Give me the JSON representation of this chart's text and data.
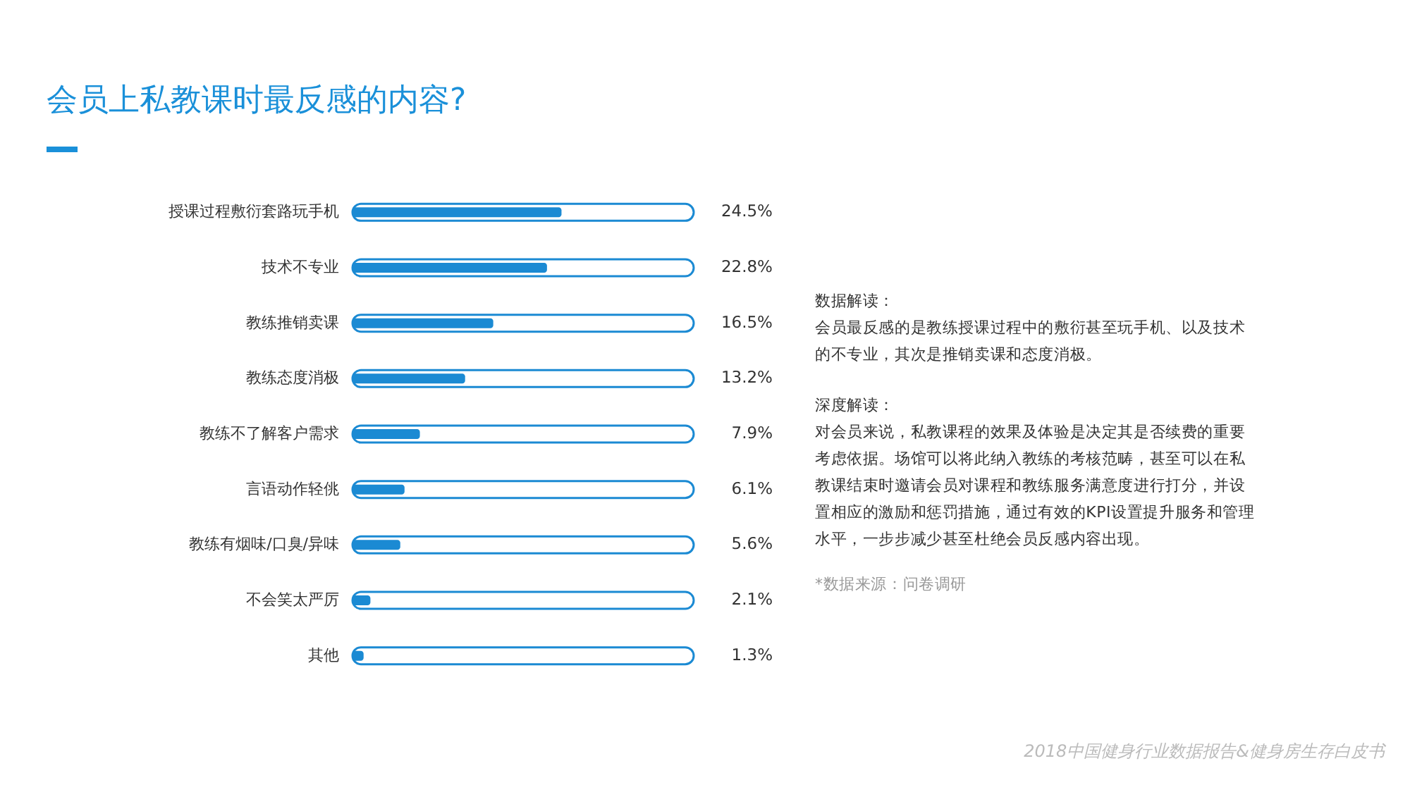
{
  "chart_data": {
    "type": "bar",
    "orientation": "horizontal",
    "title": "会员上私教课时最反感的内容?",
    "categories": [
      "授课过程敷衍套路玩手机",
      "技术不专业",
      "教练推销卖课",
      "教练态度消极",
      "教练不了解客户需求",
      "言语动作轻佻",
      "教练有烟味/口臭/异味",
      "不会笑太严厉",
      "其他"
    ],
    "values": [
      24.5,
      22.8,
      16.5,
      13.2,
      7.9,
      6.1,
      5.6,
      2.1,
      1.3
    ],
    "value_labels": [
      "24.5%",
      "22.8%",
      "16.5%",
      "13.2%",
      "7.9%",
      "6.1%",
      "5.6%",
      "2.1%",
      "1.3%"
    ],
    "color": "#1b8ad3",
    "xlim": [
      0,
      40
    ],
    "tick_labels": "y",
    "annotations": [
      "数据解读：",
      "会员最反感的是教练授课过程中的敷衍甚至玩手机、以及技术的不专业，其次是推销卖课和态度消极。",
      "深度解读：",
      "对会员来说，私教课程的效果及体验是决定其是否续费的重要考虑依据。场馆可以将此纳入教练的考核范畴，甚至可以在私教课结束时邀请会员对课程和教练服务满意度进行打分，并设置相应的激励和惩罚措施，通过有效的KPI设置提升服务和管理水平，一步步减少甚至杜绝会员反感内容出现。",
      "*数据来源：问卷调研",
      "2018中国健身行业数据报告&健身房生存白皮书"
    ]
  }
}
